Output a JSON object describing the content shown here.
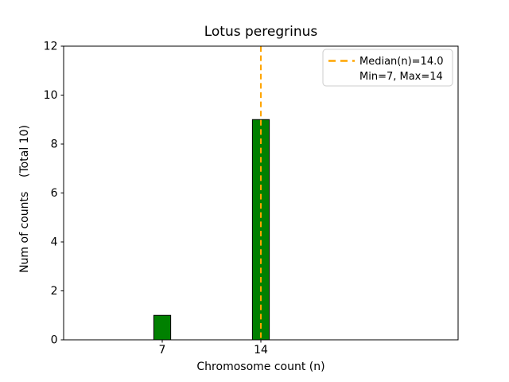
{
  "chart_data": {
    "type": "bar",
    "title": "Lotus peregrinus",
    "xlabel": "Chromosome count (n)",
    "ylabel": "Num of counts    (Total 10)",
    "categories": [
      7,
      14
    ],
    "values": [
      1,
      9
    ],
    "xticks": [
      7,
      14
    ],
    "yticks": [
      0,
      2,
      4,
      6,
      8,
      10,
      12
    ],
    "xlim": [
      0,
      28
    ],
    "ylim": [
      0,
      12
    ],
    "bar_width_units": 1.2,
    "grid": false,
    "colors": {
      "bar_fill": "#008000",
      "bar_edge": "#000000",
      "median_line": "#FFA500",
      "spine": "#000000",
      "legend_border": "#cccccc",
      "legend_background": "#ffffff",
      "text": "#000000",
      "background": "#ffffff"
    },
    "median_line": {
      "x": 14.0,
      "style": "dashed",
      "label": "Median(n)=14.0"
    },
    "legend": {
      "position": "upper right",
      "entries": [
        {
          "label": "Median(n)=14.0",
          "handle": "orange-dashed-line"
        },
        {
          "label": "Min=7, Max=14",
          "handle": "none"
        }
      ]
    }
  }
}
